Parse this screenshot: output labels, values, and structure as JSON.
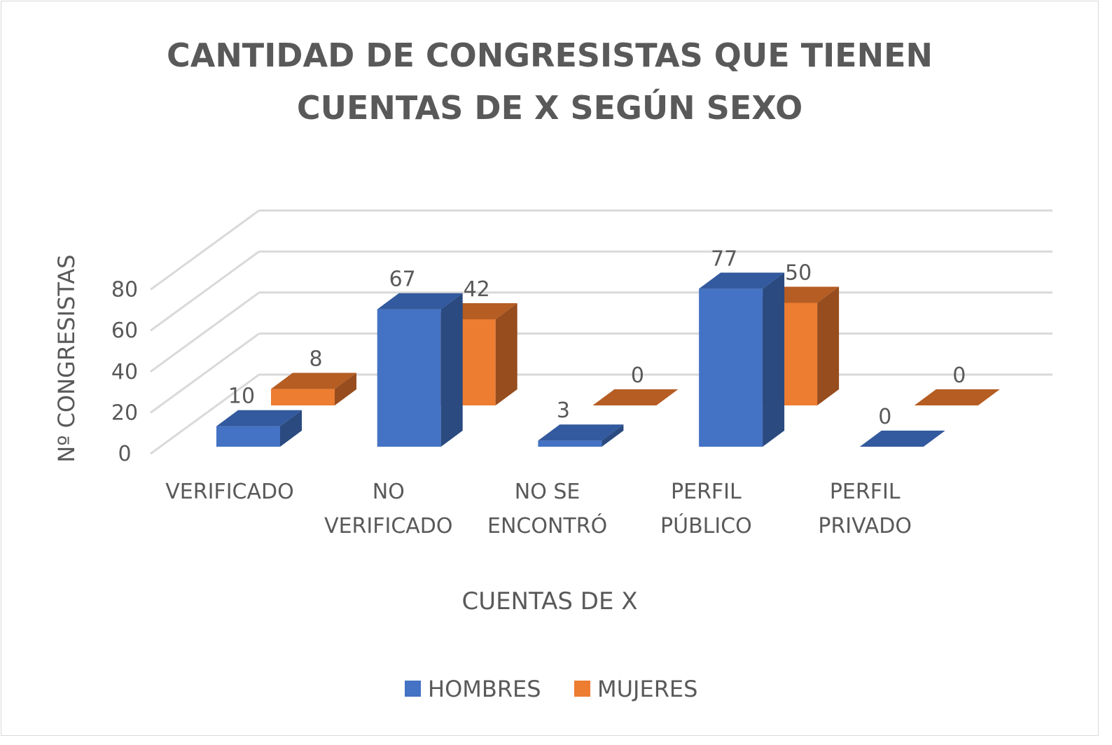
{
  "chart_data": {
    "type": "bar",
    "style": "3d-clustered-column",
    "title_lines": [
      "CANTIDAD DE CONGRESISTAS QUE TIENEN",
      "CUENTAS DE X SEGÚN SEXO"
    ],
    "xlabel": "CUENTAS DE X",
    "ylabel": "Nº CONGRESISTAS",
    "categories": [
      [
        "VERIFICADO"
      ],
      [
        "NO",
        "VERIFICADO"
      ],
      [
        "NO SE",
        "ENCONTRÓ"
      ],
      [
        "PERFIL",
        "PÚBLICO"
      ],
      [
        "PERFIL",
        "PRIVADO"
      ]
    ],
    "series": [
      {
        "name": "HOMBRES",
        "values": [
          10,
          67,
          3,
          77,
          0
        ],
        "color": "#4472C4",
        "top_color": "#335A9E",
        "side_color": "#2A4A80"
      },
      {
        "name": "MUJERES",
        "values": [
          8,
          42,
          0,
          50,
          0
        ],
        "color": "#ED7D31",
        "top_color": "#B55D23",
        "side_color": "#974D1E"
      }
    ],
    "yticks": [
      "0",
      "20",
      "40",
      "60",
      "80"
    ],
    "ylim": [
      0,
      80
    ],
    "grid": true,
    "legend_position": "bottom",
    "text_color": "#595959",
    "grid_color": "#D9D9D9"
  }
}
